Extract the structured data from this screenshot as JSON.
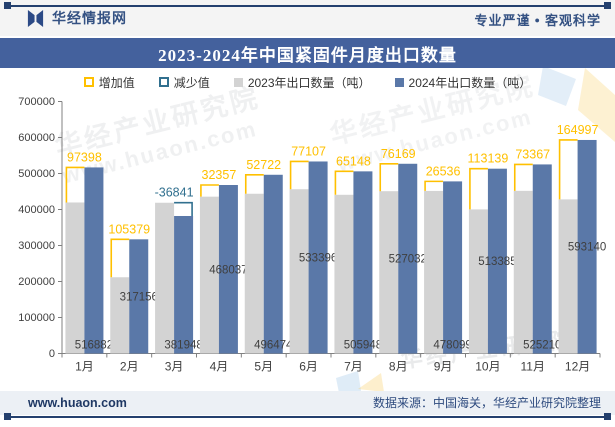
{
  "header": {
    "brand": "华经情报网",
    "slogan_part1": "专业严谨",
    "slogan_dot": "●",
    "slogan_part2": "客观科学"
  },
  "title": "2023-2024年中国紧固件月度出口数量",
  "legend": [
    {
      "label": "增加值",
      "marker": "hollow-square",
      "color": "#FFC000"
    },
    {
      "label": "减少值",
      "marker": "hollow-square",
      "color": "#31708F"
    },
    {
      "label": "2023年出口数量（吨）",
      "marker": "filled-square",
      "color": "#D3D3D3"
    },
    {
      "label": "2024年出口数量（吨）",
      "marker": "filled-square",
      "color": "#5A78A8"
    }
  ],
  "chart_data": {
    "type": "bar",
    "title": "2023-2024年中国紧固件月度出口数量",
    "categories": [
      "1月",
      "2月",
      "3月",
      "4月",
      "5月",
      "6月",
      "7月",
      "8月",
      "9月",
      "10月",
      "11月",
      "12月"
    ],
    "series": [
      {
        "name": "2023年出口数量（吨）",
        "color": "#D3D3D3",
        "values": [
          419484,
          211777,
          418789,
          435680,
          443752,
          456289,
          440800,
          450863,
          451563,
          400246,
          451843,
          428143
        ]
      },
      {
        "name": "2024年出口数量（吨）",
        "color": "#5A78A8",
        "values": [
          516882,
          317156,
          381948,
          468037,
          496474,
          533396,
          505948,
          527032,
          478099,
          513385,
          525210,
          593140
        ]
      }
    ],
    "difference_series": {
      "increase_name": "增加值",
      "increase_color": "#FFC000",
      "decrease_name": "减少值",
      "decrease_color": "#31708F",
      "values": [
        97398,
        105379,
        -36841,
        32357,
        52722,
        77107,
        65148,
        76169,
        26536,
        113139,
        73367,
        164997
      ]
    },
    "value_labels_shown_for": "2024年出口数量（吨）",
    "ylim": [
      0,
      700000
    ],
    "ytick_interval": 100000,
    "ytick_labels": [
      "0",
      "100000",
      "200000",
      "300000",
      "400000",
      "500000",
      "600000",
      "700000"
    ],
    "grid": false,
    "legend_position": "top"
  },
  "watermark": {
    "org": "华经产业研究院",
    "site": "www.huaon.com"
  },
  "footer": {
    "site": "www.huaon.com",
    "source": "数据来源：中国海关，华经产业研究院整理"
  },
  "colors": {
    "title_bar": "#44619D",
    "rule_navy": "#24406E",
    "header_text": "#355283",
    "bar_2023": "#D3D3D3",
    "bar_2024": "#5A78A8",
    "increase": "#FFC000",
    "decrease": "#31708F",
    "axis": "#808080",
    "label": "#3F3F3F"
  }
}
